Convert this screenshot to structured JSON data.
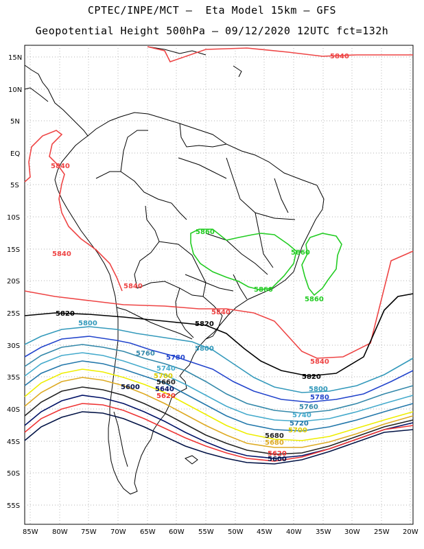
{
  "title_line1": "CPTEC/INPE/MCT –  Eta Model 15km – GFS",
  "title_line2": "Geopotential Height 500hPa – 09/12/2020 12UTC fct=132h",
  "lat_labels": [
    "15N",
    "10N",
    "5N",
    "EQ",
    "5S",
    "10S",
    "15S",
    "20S",
    "25S",
    "30S",
    "35S",
    "40S",
    "45S",
    "50S",
    "55S"
  ],
  "lon_labels": [
    "85W",
    "80W",
    "75W",
    "70W",
    "65W",
    "60W",
    "55W",
    "50W",
    "45W",
    "40W",
    "35W",
    "30W",
    "25W",
    "20W"
  ],
  "contour_colors": {
    "5860": "#22cc22",
    "5840": "#ee4444",
    "5820": "#000000",
    "5800": "#3399bb",
    "5780": "#2244cc",
    "5760": "#3388aa",
    "5740": "#44aacc",
    "5720": "#2277aa",
    "5700": "#eeee00",
    "5680": "#ddaa22",
    "5660": "#222222",
    "5640": "#001166",
    "5620": "#ee3333",
    "5600": "#001144"
  },
  "contour_labels": [
    {
      "text": "5840",
      "color": "#ee4444"
    },
    {
      "text": "5840",
      "color": "#ee4444"
    },
    {
      "text": "5840",
      "color": "#ee4444"
    },
    {
      "text": "5840",
      "color": "#ee4444"
    },
    {
      "text": "5840",
      "color": "#ee4444"
    },
    {
      "text": "5840",
      "color": "#ee4444"
    },
    {
      "text": "5860",
      "color": "#22cc22"
    },
    {
      "text": "5860",
      "color": "#22cc22"
    },
    {
      "text": "5860",
      "color": "#22cc22"
    },
    {
      "text": "5860",
      "color": "#22cc22"
    },
    {
      "text": "5820",
      "color": "#000000"
    },
    {
      "text": "5820",
      "color": "#000000"
    },
    {
      "text": "5820",
      "color": "#000000"
    },
    {
      "text": "5800",
      "color": "#3399bb"
    },
    {
      "text": "5800",
      "color": "#3399bb"
    },
    {
      "text": "5800",
      "color": "#3399bb"
    },
    {
      "text": "5780",
      "color": "#2244cc"
    },
    {
      "text": "5780",
      "color": "#2244cc"
    },
    {
      "text": "5760",
      "color": "#3388aa"
    },
    {
      "text": "5760",
      "color": "#3388aa"
    },
    {
      "text": "5740",
      "color": "#44aacc"
    },
    {
      "text": "5740",
      "color": "#44aacc"
    },
    {
      "text": "5720",
      "color": "#2277aa"
    },
    {
      "text": "5700",
      "color": "#ddcc00"
    },
    {
      "text": "5700",
      "color": "#ddcc00"
    },
    {
      "text": "5680",
      "color": "#222222"
    },
    {
      "text": "5660",
      "color": "#222222"
    },
    {
      "text": "5640",
      "color": "#001166"
    },
    {
      "text": "5620",
      "color": "#ee3333"
    },
    {
      "text": "5620",
      "color": "#ee3333"
    },
    {
      "text": "5600",
      "color": "#001144"
    },
    {
      "text": "5600",
      "color": "#001144"
    },
    {
      "text": "5680",
      "color": "#ddaa22"
    }
  ]
}
